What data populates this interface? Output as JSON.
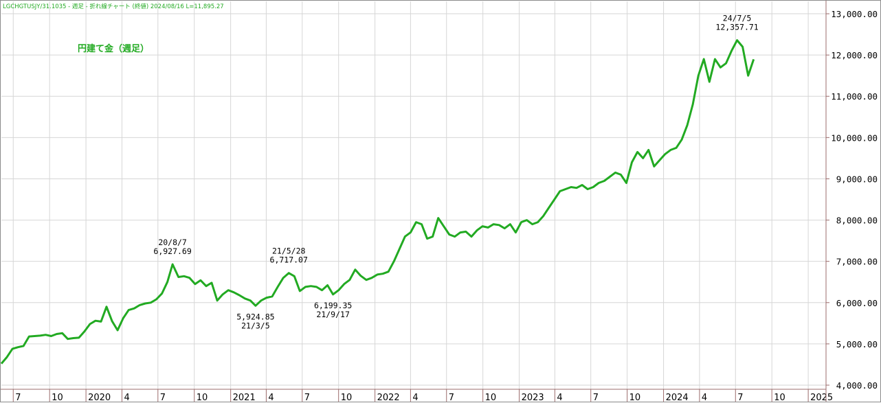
{
  "header_text": "LGCHGTUSJY/31.1035 - 週足 - 折れ線チャート (終値) 2024/08/16 L=11,895.27",
  "colors": {
    "line": "#22aa22",
    "title": "#22aa22",
    "grid": "#d6d6d6",
    "axis": "#9b6b6b",
    "text": "#000000"
  },
  "chart_data": {
    "type": "line",
    "title": "円建て金（週足）",
    "xlabel": "",
    "ylabel": "",
    "ylim": [
      3900,
      13300
    ],
    "xlim": [
      "2019-06-01",
      "2025-02-15"
    ],
    "grid": true,
    "y_ticks": [
      {
        "value": 4000,
        "label": "4,000.00"
      },
      {
        "value": 5000,
        "label": "5,000.00"
      },
      {
        "value": 6000,
        "label": "6,000.00"
      },
      {
        "value": 7000,
        "label": "7,000.00"
      },
      {
        "value": 8000,
        "label": "8,000.00"
      },
      {
        "value": 9000,
        "label": "9,000.00"
      },
      {
        "value": 10000,
        "label": "10,000.00"
      },
      {
        "value": 11000,
        "label": "11,000.00"
      },
      {
        "value": 12000,
        "label": "12,000.00"
      },
      {
        "value": 13000,
        "label": "13,000.00"
      }
    ],
    "x_ticks": [
      {
        "date": "2019-07-01",
        "label": "7"
      },
      {
        "date": "2019-10-01",
        "label": "10"
      },
      {
        "date": "2020-01-01",
        "label": "2020"
      },
      {
        "date": "2020-04-01",
        "label": "4"
      },
      {
        "date": "2020-07-01",
        "label": "7"
      },
      {
        "date": "2020-10-01",
        "label": "10"
      },
      {
        "date": "2021-01-01",
        "label": "2021"
      },
      {
        "date": "2021-04-01",
        "label": "4"
      },
      {
        "date": "2021-07-01",
        "label": "7"
      },
      {
        "date": "2021-10-01",
        "label": "10"
      },
      {
        "date": "2022-01-01",
        "label": "2022"
      },
      {
        "date": "2022-04-01",
        "label": "4"
      },
      {
        "date": "2022-07-01",
        "label": "7"
      },
      {
        "date": "2022-10-01",
        "label": "10"
      },
      {
        "date": "2023-01-01",
        "label": "2023"
      },
      {
        "date": "2023-04-01",
        "label": "4"
      },
      {
        "date": "2023-07-01",
        "label": "7"
      },
      {
        "date": "2023-10-01",
        "label": "10"
      },
      {
        "date": "2024-01-01",
        "label": "2024"
      },
      {
        "date": "2024-04-01",
        "label": "4"
      },
      {
        "date": "2024-07-01",
        "label": "7"
      },
      {
        "date": "2024-10-01",
        "label": "10"
      },
      {
        "date": "2025-01-01",
        "label": "2025"
      }
    ],
    "series": [
      {
        "points": [
          [
            "2019-06-01",
            4520
          ],
          [
            "2019-06-15",
            4680
          ],
          [
            "2019-06-29",
            4880
          ],
          [
            "2019-07-13",
            4920
          ],
          [
            "2019-07-27",
            4950
          ],
          [
            "2019-08-10",
            5180
          ],
          [
            "2019-08-24",
            5190
          ],
          [
            "2019-09-07",
            5200
          ],
          [
            "2019-09-21",
            5220
          ],
          [
            "2019-10-05",
            5190
          ],
          [
            "2019-10-19",
            5240
          ],
          [
            "2019-11-02",
            5260
          ],
          [
            "2019-11-16",
            5120
          ],
          [
            "2019-11-30",
            5140
          ],
          [
            "2019-12-14",
            5150
          ],
          [
            "2019-12-28",
            5300
          ],
          [
            "2020-01-11",
            5480
          ],
          [
            "2020-01-25",
            5560
          ],
          [
            "2020-02-08",
            5540
          ],
          [
            "2020-02-22",
            5900
          ],
          [
            "2020-03-07",
            5550
          ],
          [
            "2020-03-21",
            5330
          ],
          [
            "2020-04-04",
            5620
          ],
          [
            "2020-04-18",
            5820
          ],
          [
            "2020-05-02",
            5860
          ],
          [
            "2020-05-16",
            5940
          ],
          [
            "2020-05-30",
            5980
          ],
          [
            "2020-06-13",
            6000
          ],
          [
            "2020-06-27",
            6080
          ],
          [
            "2020-07-11",
            6220
          ],
          [
            "2020-07-25",
            6500
          ],
          [
            "2020-08-07",
            6927.69
          ],
          [
            "2020-08-22",
            6620
          ],
          [
            "2020-09-05",
            6640
          ],
          [
            "2020-09-19",
            6600
          ],
          [
            "2020-10-03",
            6450
          ],
          [
            "2020-10-17",
            6540
          ],
          [
            "2020-10-31",
            6400
          ],
          [
            "2020-11-14",
            6480
          ],
          [
            "2020-11-28",
            6050
          ],
          [
            "2020-12-12",
            6200
          ],
          [
            "2020-12-26",
            6300
          ],
          [
            "2021-01-09",
            6250
          ],
          [
            "2021-01-23",
            6180
          ],
          [
            "2021-02-06",
            6100
          ],
          [
            "2021-02-20",
            6050
          ],
          [
            "2021-03-05",
            5924.85
          ],
          [
            "2021-03-19",
            6050
          ],
          [
            "2021-04-02",
            6120
          ],
          [
            "2021-04-16",
            6150
          ],
          [
            "2021-04-30",
            6380
          ],
          [
            "2021-05-14",
            6600
          ],
          [
            "2021-05-28",
            6717.07
          ],
          [
            "2021-06-11",
            6640
          ],
          [
            "2021-06-25",
            6280
          ],
          [
            "2021-07-09",
            6380
          ],
          [
            "2021-07-23",
            6400
          ],
          [
            "2021-08-06",
            6380
          ],
          [
            "2021-08-20",
            6300
          ],
          [
            "2021-09-03",
            6420
          ],
          [
            "2021-09-17",
            6199.35
          ],
          [
            "2021-10-01",
            6300
          ],
          [
            "2021-10-15",
            6450
          ],
          [
            "2021-10-29",
            6550
          ],
          [
            "2021-11-12",
            6800
          ],
          [
            "2021-11-26",
            6650
          ],
          [
            "2021-12-10",
            6550
          ],
          [
            "2021-12-24",
            6600
          ],
          [
            "2022-01-07",
            6680
          ],
          [
            "2022-01-21",
            6700
          ],
          [
            "2022-02-04",
            6750
          ],
          [
            "2022-02-18",
            7000
          ],
          [
            "2022-03-04",
            7300
          ],
          [
            "2022-03-18",
            7600
          ],
          [
            "2022-04-01",
            7700
          ],
          [
            "2022-04-15",
            7950
          ],
          [
            "2022-04-29",
            7900
          ],
          [
            "2022-05-13",
            7550
          ],
          [
            "2022-05-27",
            7600
          ],
          [
            "2022-06-10",
            8050
          ],
          [
            "2022-06-24",
            7850
          ],
          [
            "2022-07-08",
            7650
          ],
          [
            "2022-07-22",
            7600
          ],
          [
            "2022-08-05",
            7700
          ],
          [
            "2022-08-19",
            7720
          ],
          [
            "2022-09-02",
            7600
          ],
          [
            "2022-09-16",
            7750
          ],
          [
            "2022-09-30",
            7850
          ],
          [
            "2022-10-14",
            7820
          ],
          [
            "2022-10-28",
            7900
          ],
          [
            "2022-11-11",
            7880
          ],
          [
            "2022-11-25",
            7800
          ],
          [
            "2022-12-09",
            7900
          ],
          [
            "2022-12-23",
            7700
          ],
          [
            "2023-01-06",
            7950
          ],
          [
            "2023-01-20",
            8000
          ],
          [
            "2023-02-03",
            7900
          ],
          [
            "2023-02-17",
            7950
          ],
          [
            "2023-03-03",
            8100
          ],
          [
            "2023-03-17",
            8300
          ],
          [
            "2023-03-31",
            8500
          ],
          [
            "2023-04-14",
            8700
          ],
          [
            "2023-04-28",
            8750
          ],
          [
            "2023-05-12",
            8800
          ],
          [
            "2023-05-26",
            8780
          ],
          [
            "2023-06-09",
            8850
          ],
          [
            "2023-06-23",
            8750
          ],
          [
            "2023-07-07",
            8800
          ],
          [
            "2023-07-21",
            8900
          ],
          [
            "2023-08-04",
            8950
          ],
          [
            "2023-08-18",
            9050
          ],
          [
            "2023-09-01",
            9150
          ],
          [
            "2023-09-15",
            9100
          ],
          [
            "2023-09-29",
            8900
          ],
          [
            "2023-10-13",
            9400
          ],
          [
            "2023-10-27",
            9650
          ],
          [
            "2023-11-10",
            9500
          ],
          [
            "2023-11-24",
            9700
          ],
          [
            "2023-12-08",
            9300
          ],
          [
            "2023-12-22",
            9450
          ],
          [
            "2024-01-05",
            9600
          ],
          [
            "2024-01-19",
            9700
          ],
          [
            "2024-02-02",
            9750
          ],
          [
            "2024-02-16",
            9950
          ],
          [
            "2024-03-01",
            10300
          ],
          [
            "2024-03-15",
            10800
          ],
          [
            "2024-03-29",
            11500
          ],
          [
            "2024-04-12",
            11900
          ],
          [
            "2024-04-26",
            11350
          ],
          [
            "2024-05-10",
            11900
          ],
          [
            "2024-05-24",
            11700
          ],
          [
            "2024-06-07",
            11800
          ],
          [
            "2024-06-21",
            12100
          ],
          [
            "2024-07-05",
            12357.71
          ],
          [
            "2024-07-19",
            12200
          ],
          [
            "2024-08-02",
            11500
          ],
          [
            "2024-08-16",
            11895.27
          ]
        ]
      }
    ],
    "annotations": [
      {
        "date": "2020-08-07",
        "value": 6927.69,
        "lines": [
          "20/8/7",
          "6,927.69"
        ],
        "pos": "above"
      },
      {
        "date": "2021-05-28",
        "value": 6717.07,
        "lines": [
          "21/5/28",
          "6,717.07"
        ],
        "pos": "above"
      },
      {
        "date": "2021-03-05",
        "value": 5924.85,
        "lines": [
          "5,924.85",
          "21/3/5"
        ],
        "pos": "below"
      },
      {
        "date": "2021-09-17",
        "value": 6199.35,
        "lines": [
          "6,199.35",
          "21/9/17"
        ],
        "pos": "below"
      },
      {
        "date": "2024-07-05",
        "value": 12357.71,
        "lines": [
          "24/7/5",
          "12,357.71"
        ],
        "pos": "above"
      }
    ]
  }
}
